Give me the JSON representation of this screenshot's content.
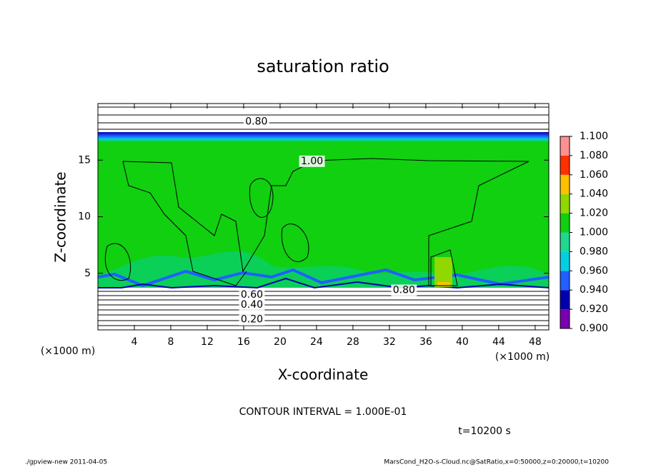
{
  "chart_data": {
    "type": "contour",
    "title": "saturation ratio",
    "x_label": "X-coordinate",
    "y_label": "Z-coordinate",
    "x_unit": "(×1000 m)",
    "y_unit": "(×1000 m)",
    "xlim": [
      0,
      49.5
    ],
    "xticks": [
      4,
      8,
      12,
      16,
      20,
      24,
      28,
      32,
      36,
      40,
      44,
      48
    ],
    "ylim": [
      0,
      20
    ],
    "yticks": [
      5,
      10,
      15
    ],
    "contour_labels": [
      {
        "value": 0.8,
        "label": "0.80",
        "x": 17.4,
        "y": 18.4
      },
      {
        "value": 1.0,
        "label": "1.00",
        "x": 23.5,
        "y": 14.9
      },
      {
        "value": 0.6,
        "label": "0.60",
        "x": 16.9,
        "y": 3.1
      },
      {
        "value": 0.4,
        "label": "0.40",
        "x": 16.9,
        "y": 2.2
      },
      {
        "value": 0.2,
        "label": "0.20",
        "x": 16.9,
        "y": 0.9
      },
      {
        "value": 0.8,
        "label": "0.80",
        "x": 33.6,
        "y": 3.5
      }
    ],
    "colorbar": {
      "levels": [
        {
          "value": 0.9,
          "label": "0.900"
        },
        {
          "value": 0.92,
          "label": "0.920"
        },
        {
          "value": 0.94,
          "label": "0.940"
        },
        {
          "value": 0.96,
          "label": "0.960"
        },
        {
          "value": 0.98,
          "label": "0.980"
        },
        {
          "value": 1.0,
          "label": "1.000"
        },
        {
          "value": 1.02,
          "label": "1.020"
        },
        {
          "value": 1.04,
          "label": "1.040"
        },
        {
          "value": 1.06,
          "label": "1.060"
        },
        {
          "value": 1.08,
          "label": "1.080"
        },
        {
          "value": 1.1,
          "label": "1.100"
        }
      ],
      "colors": [
        "#7a00b0",
        "#0000b0",
        "#2060ff",
        "#00d0e0",
        "#20d890",
        "#10d010",
        "#90d800",
        "#ffc000",
        "#ff3000",
        "#ff9090"
      ]
    },
    "contour_interval": "CONTOUR INTERVAL = 1.000E-01",
    "time": "t=10200 s",
    "footer_left": "./gpview-new  2011-04-05",
    "footer_right": "MarsCond_H2O-s-Cloud.nc@SatRatio,x=0:50000,z=0:20000,t=10200"
  }
}
